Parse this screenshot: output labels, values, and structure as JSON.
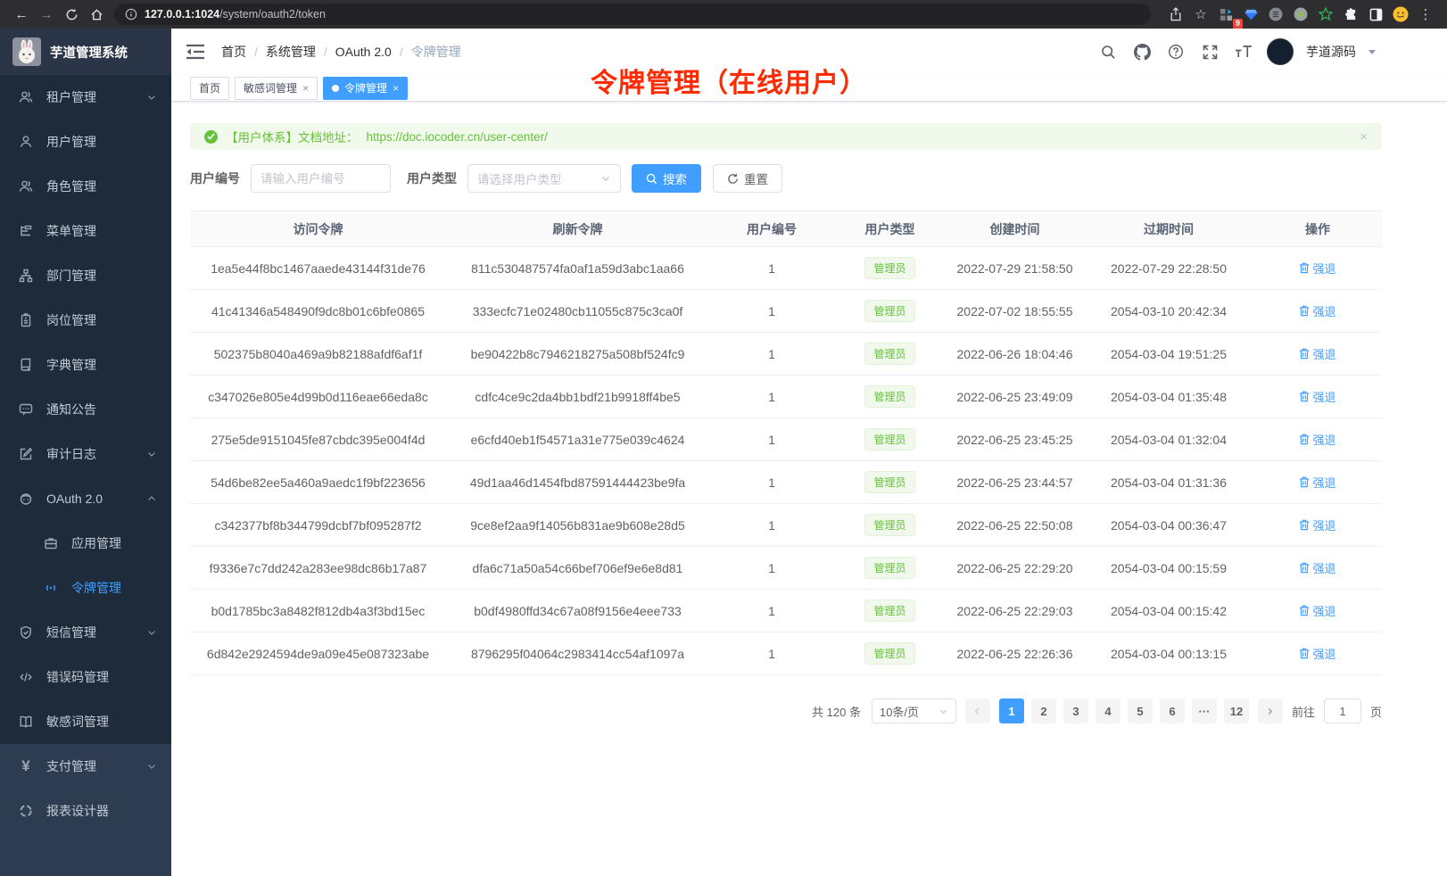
{
  "browser": {
    "url_host": "127.0.0.1:1024",
    "url_path": "/system/oauth2/token",
    "extensions_badge": "9"
  },
  "icons": {
    "close": "×"
  },
  "sidebar": {
    "logo_title": "芋道管理系统",
    "items": [
      {
        "label": "租户管理"
      },
      {
        "label": "用户管理"
      },
      {
        "label": "角色管理"
      },
      {
        "label": "菜单管理"
      },
      {
        "label": "部门管理"
      },
      {
        "label": "岗位管理"
      },
      {
        "label": "字典管理"
      },
      {
        "label": "通知公告"
      },
      {
        "label": "审计日志"
      },
      {
        "label": "OAuth 2.0"
      },
      {
        "label": "应用管理"
      },
      {
        "label": "令牌管理"
      },
      {
        "label": "短信管理"
      },
      {
        "label": "错误码管理"
      },
      {
        "label": "敏感词管理"
      },
      {
        "label": "支付管理"
      },
      {
        "label": "报表设计器"
      }
    ]
  },
  "breadcrumb": {
    "items": [
      "首页",
      "系统管理",
      "OAuth 2.0",
      "令牌管理"
    ],
    "separator": "/"
  },
  "tabs": [
    {
      "label": "首页"
    },
    {
      "label": "敏感词管理"
    },
    {
      "label": "令牌管理"
    }
  ],
  "user_menu": {
    "name": "芋道源码"
  },
  "annotation": "令牌管理（在线用户）",
  "alert": {
    "text": "【用户体系】文档地址：",
    "link": "https://doc.iocoder.cn/user-center/"
  },
  "filters": {
    "user_id_label": "用户编号",
    "user_id_placeholder": "请输入用户编号",
    "user_type_label": "用户类型",
    "user_type_placeholder": "请选择用户类型",
    "search_label": "搜索",
    "reset_label": "重置"
  },
  "table": {
    "columns": [
      "访问令牌",
      "刷新令牌",
      "用户编号",
      "用户类型",
      "创建时间",
      "过期时间",
      "操作"
    ],
    "action_label": "强退",
    "rows": [
      {
        "access_token": "1ea5e44f8bc1467aaede43144f31de76",
        "refresh_token": "811c530487574fa0af1a59d3abc1aa66",
        "user_id": "1",
        "user_type": "管理员",
        "create_time": "2022-07-29 21:58:50",
        "expire_time": "2022-07-29 22:28:50"
      },
      {
        "access_token": "41c41346a548490f9dc8b01c6bfe0865",
        "refresh_token": "333ecfc71e02480cb11055c875c3ca0f",
        "user_id": "1",
        "user_type": "管理员",
        "create_time": "2022-07-02 18:55:55",
        "expire_time": "2054-03-10 20:42:34"
      },
      {
        "access_token": "502375b8040a469a9b82188afdf6af1f",
        "refresh_token": "be90422b8c7946218275a508bf524fc9",
        "user_id": "1",
        "user_type": "管理员",
        "create_time": "2022-06-26 18:04:46",
        "expire_time": "2054-03-04 19:51:25"
      },
      {
        "access_token": "c347026e805e4d99b0d116eae66eda8c",
        "refresh_token": "cdfc4ce9c2da4bb1bdf21b9918ff4be5",
        "user_id": "1",
        "user_type": "管理员",
        "create_time": "2022-06-25 23:49:09",
        "expire_time": "2054-03-04 01:35:48"
      },
      {
        "access_token": "275e5de9151045fe87cbdc395e004f4d",
        "refresh_token": "e6cfd40eb1f54571a31e775e039c4624",
        "user_id": "1",
        "user_type": "管理员",
        "create_time": "2022-06-25 23:45:25",
        "expire_time": "2054-03-04 01:32:04"
      },
      {
        "access_token": "54d6be82ee5a460a9aedc1f9bf223656",
        "refresh_token": "49d1aa46d1454fbd87591444423be9fa",
        "user_id": "1",
        "user_type": "管理员",
        "create_time": "2022-06-25 23:44:57",
        "expire_time": "2054-03-04 01:31:36"
      },
      {
        "access_token": "c342377bf8b344799dcbf7bf095287f2",
        "refresh_token": "9ce8ef2aa9f14056b831ae9b608e28d5",
        "user_id": "1",
        "user_type": "管理员",
        "create_time": "2022-06-25 22:50:08",
        "expire_time": "2054-03-04 00:36:47"
      },
      {
        "access_token": "f9336e7c7dd242a283ee98dc86b17a87",
        "refresh_token": "dfa6c71a50a54c66bef706ef9e6e8d81",
        "user_id": "1",
        "user_type": "管理员",
        "create_time": "2022-06-25 22:29:20",
        "expire_time": "2054-03-04 00:15:59"
      },
      {
        "access_token": "b0d1785bc3a8482f812db4a3f3bd15ec",
        "refresh_token": "b0df4980ffd34c67a08f9156e4eee733",
        "user_id": "1",
        "user_type": "管理员",
        "create_time": "2022-06-25 22:29:03",
        "expire_time": "2054-03-04 00:15:42"
      },
      {
        "access_token": "6d842e2924594de9a09e45e087323abe",
        "refresh_token": "8796295f04064c2983414cc54af1097a",
        "user_id": "1",
        "user_type": "管理员",
        "create_time": "2022-06-25 22:26:36",
        "expire_time": "2054-03-04 00:13:15"
      }
    ]
  },
  "pagination": {
    "total": "共 120 条",
    "page_size": "10条/页",
    "pages": [
      "1",
      "2",
      "3",
      "4",
      "5",
      "6",
      "···",
      "12"
    ],
    "active": "1",
    "goto_label": "前往",
    "goto_value": "1",
    "unit_label": "页"
  },
  "colors": {
    "accent": "#409eff",
    "success": "#67c23a",
    "annotation": "#fd2b02"
  }
}
